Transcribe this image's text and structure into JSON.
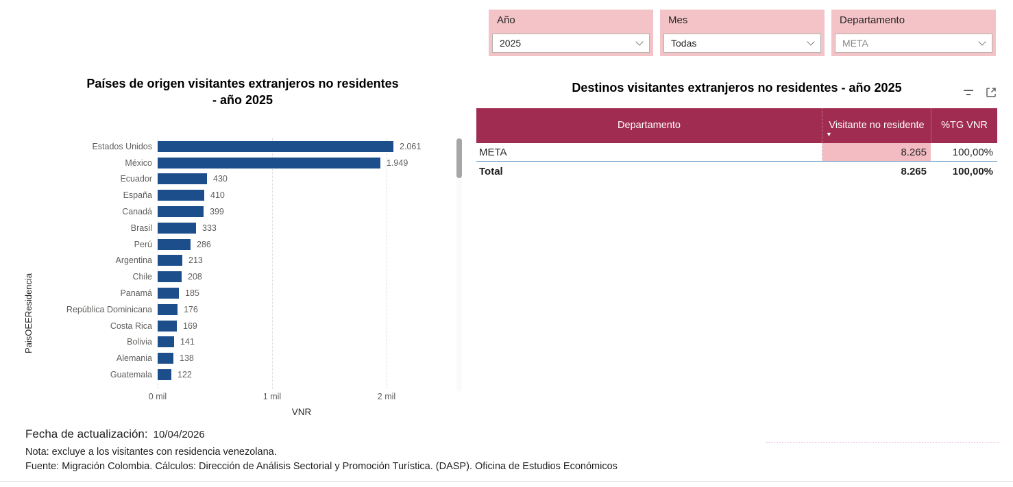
{
  "filters": [
    {
      "label": "Año",
      "value": "2025"
    },
    {
      "label": "Mes",
      "value": "Todas"
    },
    {
      "label": "Departamento",
      "value": "META"
    }
  ],
  "chart_data": [
    {
      "type": "bar",
      "orientation": "horizontal",
      "title": "Países de origen visitantes extranjeros no residentes - año 2025",
      "title_line1": "Países de origen visitantes extranjeros no residentes",
      "title_line2": "- año 2025",
      "xlabel": "VNR",
      "ylabel": "PaisOEEResidencia",
      "categories": [
        "Estados Unidos",
        "México",
        "Ecuador",
        "España",
        "Canadá",
        "Brasil",
        "Perú",
        "Argentina",
        "Chile",
        "Panamá",
        "República Dominicana",
        "Costa Rica",
        "Bolivia",
        "Alemania",
        "Guatemala"
      ],
      "values": [
        2061,
        1949,
        430,
        410,
        399,
        333,
        286,
        213,
        208,
        185,
        176,
        169,
        141,
        138,
        122
      ],
      "value_labels": [
        "2.061",
        "1.949",
        "430",
        "410",
        "399",
        "333",
        "286",
        "213",
        "208",
        "185",
        "176",
        "169",
        "141",
        "138",
        "122"
      ],
      "xlim": [
        0,
        2200
      ],
      "x_tick_values": [
        0,
        1000,
        2000
      ],
      "x_tick_labels": [
        "0 mil",
        "1 mil",
        "2 mil"
      ],
      "grid": "vertical-dotted",
      "legend": "none"
    },
    {
      "type": "table",
      "title": "Destinos visitantes extranjeros no residentes - año 2025",
      "columns": [
        "Departamento",
        "Visitante no residente",
        "%TG VNR"
      ],
      "rows": [
        {
          "departamento": "META",
          "visitante": "8.265",
          "pct": "100,00%"
        }
      ],
      "total": {
        "label": "Total",
        "visitante": "8.265",
        "pct": "100,00%"
      }
    }
  ],
  "table": {
    "title": "Destinos visitantes extranjeros no residentes - año 2025",
    "columns": [
      "Departamento",
      "Visitante no residente",
      "%TG VNR"
    ],
    "rows": [
      {
        "departamento": "META",
        "visitante": "8.265",
        "pct": "100,00%"
      }
    ],
    "total": {
      "label": "Total",
      "visitante": "8.265",
      "pct": "100,00%"
    }
  },
  "footer": {
    "fecha_label": "Fecha de actualización:",
    "fecha_value": "10/04/2026",
    "nota": "Nota: excluye a los visitantes con residencia venezolana.",
    "fuente": "Fuente: Migración Colombia.  Cálculos: Dirección de Análisis Sectorial y Promoción Turística. (DASP). Oficina de Estudios Económicos"
  },
  "icons": {
    "filter": "filter-icon",
    "focus_mode": "focus-mode-icon",
    "dropdown_chevron": "chevron-down-icon",
    "sort_descending": "sort-descending-icon"
  },
  "colors": {
    "bar_blue": "#1d4e8c",
    "table_header_maroon": "#a12c52",
    "filter_pink": "#f3c3c7",
    "data_cell_pink": "#f3bcc3",
    "row_separator_blue": "#6f9dc9",
    "label_gray": "#605e5c"
  }
}
